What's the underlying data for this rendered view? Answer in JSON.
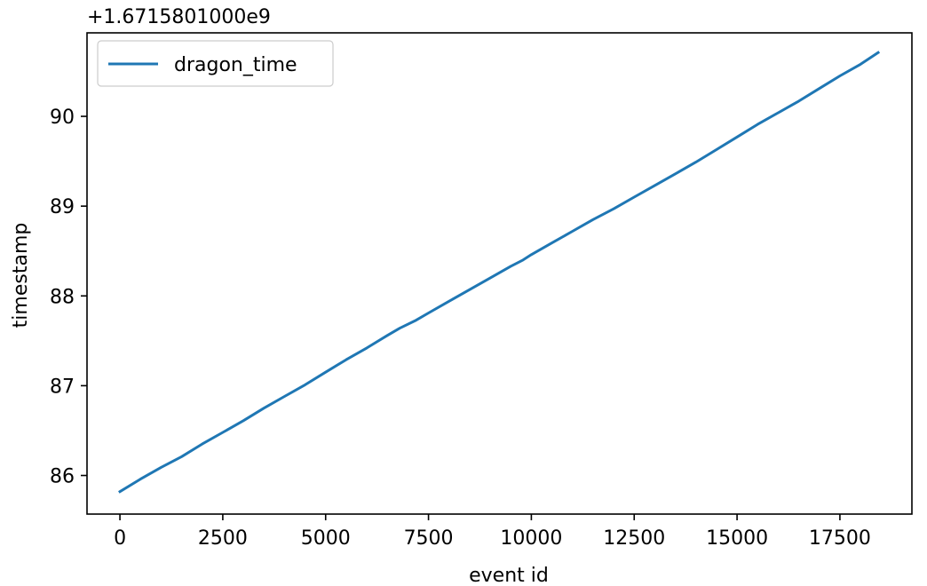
{
  "chart_data": {
    "type": "line",
    "title": "",
    "xlabel": "event id",
    "ylabel": "timestamp",
    "offset_text": "+1.6715801000e9",
    "xlim": [
      -800,
      19250
    ],
    "ylim": [
      85.57,
      90.93
    ],
    "xticks": [
      0,
      2500,
      5000,
      7500,
      10000,
      12500,
      15000,
      17500
    ],
    "xtick_labels": [
      "0",
      "2500",
      "5000",
      "7500",
      "10000",
      "12500",
      "15000",
      "17500"
    ],
    "yticks": [
      86,
      87,
      88,
      89,
      90
    ],
    "ytick_labels": [
      "86",
      "87",
      "88",
      "89",
      "90"
    ],
    "grid": false,
    "legend_position": "upper-left",
    "series": [
      {
        "name": "dragon_time",
        "color": "#1f77b4",
        "x": [
          0,
          500,
          1000,
          1500,
          2000,
          2500,
          3000,
          3500,
          4000,
          4500,
          5000,
          5500,
          6000,
          6500,
          6800,
          7200,
          7500,
          8000,
          8500,
          9000,
          9500,
          9800,
          10000,
          10500,
          11000,
          11500,
          12000,
          12500,
          13000,
          13500,
          14000,
          14500,
          15000,
          15500,
          16000,
          16500,
          17000,
          17500,
          18000,
          18430
        ],
        "y": [
          85.82,
          85.96,
          86.09,
          86.21,
          86.35,
          86.48,
          86.61,
          86.75,
          86.88,
          87.01,
          87.15,
          87.29,
          87.42,
          87.56,
          87.64,
          87.73,
          87.81,
          87.94,
          88.07,
          88.2,
          88.33,
          88.4,
          88.46,
          88.59,
          88.72,
          88.85,
          88.97,
          89.1,
          89.23,
          89.36,
          89.49,
          89.63,
          89.77,
          89.91,
          90.04,
          90.17,
          90.31,
          90.45,
          90.58,
          90.71
        ]
      }
    ]
  }
}
